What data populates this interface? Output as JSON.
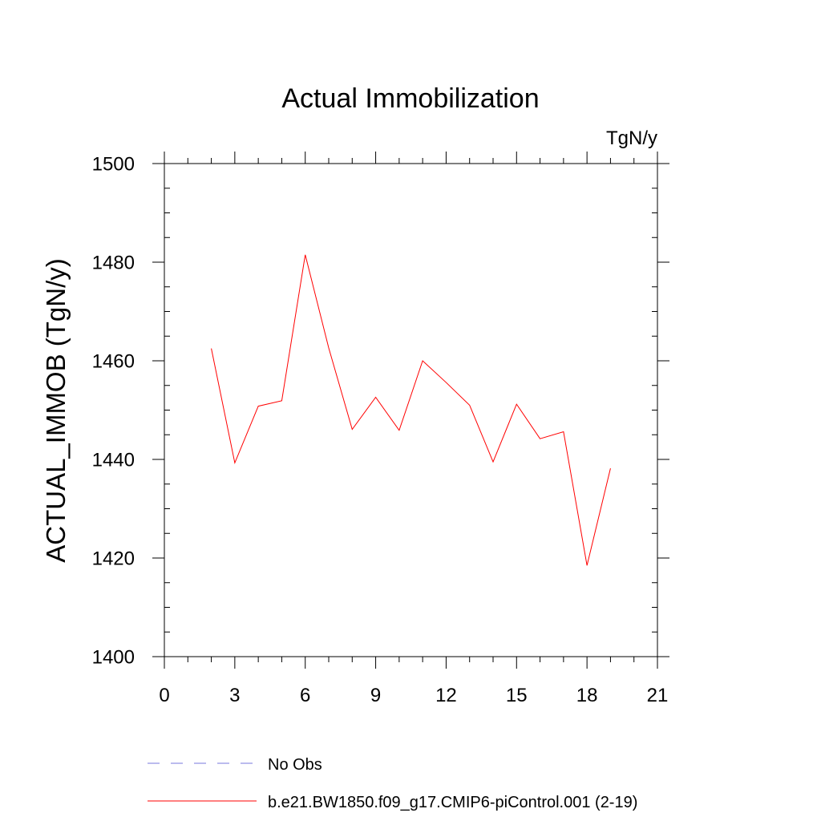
{
  "chart_data": {
    "type": "line",
    "title": "Actual Immobilization",
    "units_label": "TgN/y",
    "xlabel": "",
    "ylabel": "ACTUAL_IMMOB  (TgN/y)",
    "xlim": [
      0,
      21
    ],
    "ylim": [
      1400,
      1500
    ],
    "x_ticks": [
      0,
      3,
      6,
      9,
      12,
      15,
      18,
      21
    ],
    "x_tick_labels": [
      "0",
      "3",
      "6",
      "9",
      "12",
      "15",
      "18",
      "21"
    ],
    "y_ticks": [
      1400,
      1420,
      1440,
      1460,
      1480,
      1500
    ],
    "y_tick_labels": [
      "1400",
      "1420",
      "1440",
      "1460",
      "1480",
      "1500"
    ],
    "x_minor_step": 1,
    "y_minor_step": 5,
    "grid": false,
    "legend_position": "bottom-left",
    "series": [
      {
        "name": "b.e21.BW1850.f09_g17.CMIP6-piControl.001 (2-19)",
        "color": "#ff0000",
        "style": "solid",
        "x": [
          2,
          3,
          4,
          5,
          6,
          7,
          8,
          9,
          10,
          11,
          12,
          13,
          14,
          15,
          16,
          17,
          18,
          19
        ],
        "values": [
          1462.5,
          1439.3,
          1450.8,
          1451.9,
          1481.5,
          1462.6,
          1446.1,
          1452.6,
          1445.9,
          1460.0,
          1455.6,
          1451.0,
          1439.5,
          1451.2,
          1444.2,
          1445.6,
          1418.5,
          1438.2
        ]
      }
    ],
    "legend": [
      {
        "label": "No Obs",
        "color": "#7777dd",
        "style": "dashed"
      },
      {
        "label": "b.e21.BW1850.f09_g17.CMIP6-piControl.001 (2-19)",
        "color": "#ff0000",
        "style": "solid"
      }
    ]
  }
}
